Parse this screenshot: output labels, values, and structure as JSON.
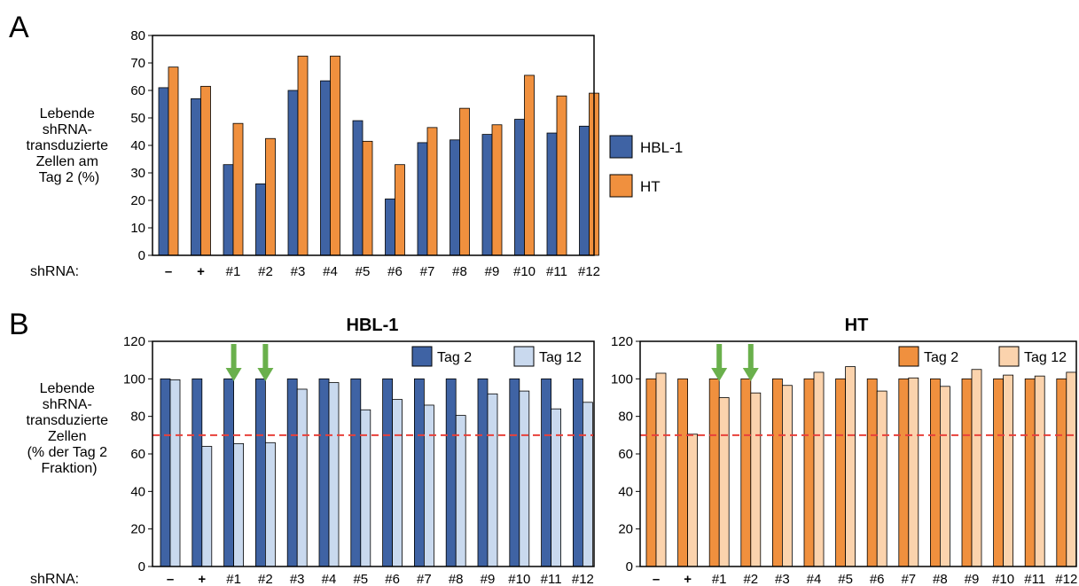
{
  "panel_a": {
    "letter": "A",
    "ylabel_lines": [
      "Lebende",
      "shRNA-",
      "transduzierte",
      "Zellen am",
      "Tag 2 (%)"
    ],
    "xprefix": "shRNA:",
    "legend": [
      "HBL-1",
      "HT"
    ],
    "colors": [
      "#3f63a4",
      "#f0903e"
    ]
  },
  "panel_b": {
    "letter": "B",
    "ylabel_lines": [
      "Lebende",
      "shRNA-",
      "transduzierte",
      "Zellen",
      "(% der Tag 2",
      "Fraktion)"
    ],
    "xprefix": "shRNA:"
  },
  "chart_data": [
    {
      "type": "bar",
      "categories": [
        "–",
        "+",
        "#1",
        "#2",
        "#3",
        "#4",
        "#5",
        "#6",
        "#7",
        "#8",
        "#9",
        "#10",
        "#11",
        "#12"
      ],
      "series": [
        {
          "name": "HBL-1",
          "values": [
            61,
            57,
            33,
            26,
            60,
            63.5,
            49,
            20.5,
            41,
            42,
            44,
            49.5,
            44.5,
            47
          ],
          "color": "#3f63a4"
        },
        {
          "name": "HT",
          "values": [
            68.5,
            61.5,
            48,
            42.5,
            72.5,
            72.5,
            41.5,
            33,
            46.5,
            53.5,
            47.5,
            65.5,
            58,
            59
          ],
          "color": "#f0903e"
        }
      ],
      "ylim": [
        0,
        80
      ],
      "yticks": [
        0,
        10,
        20,
        30,
        40,
        50,
        60,
        70,
        80
      ]
    },
    {
      "type": "bar",
      "title": "HBL-1",
      "categories": [
        "–",
        "+",
        "#1",
        "#2",
        "#3",
        "#4",
        "#5",
        "#6",
        "#7",
        "#8",
        "#9",
        "#10",
        "#11",
        "#12"
      ],
      "series": [
        {
          "name": "Tag 2",
          "values": [
            100,
            100,
            100,
            100,
            100,
            100,
            100,
            100,
            100,
            100,
            100,
            100,
            100,
            100
          ],
          "color": "#3f63a4"
        },
        {
          "name": "Tag 12",
          "values": [
            99.5,
            64,
            65.5,
            66,
            94.5,
            98,
            83.5,
            89,
            86,
            80.5,
            92,
            93.5,
            84,
            87.5
          ],
          "color": "#c9d9ee"
        }
      ],
      "ylim": [
        0,
        120
      ],
      "yticks": [
        0,
        20,
        40,
        60,
        80,
        100,
        120
      ],
      "threshold": 70,
      "arrow_categories": [
        "#1",
        "#2"
      ],
      "arrow_color": "#6ab04c",
      "threshold_color": "#e8403a"
    },
    {
      "type": "bar",
      "title": "HT",
      "categories": [
        "–",
        "+",
        "#1",
        "#2",
        "#3",
        "#4",
        "#5",
        "#6",
        "#7",
        "#8",
        "#9",
        "#10",
        "#11",
        "#12"
      ],
      "series": [
        {
          "name": "Tag 2",
          "values": [
            100,
            100,
            100,
            100,
            100,
            100,
            100,
            100,
            100,
            100,
            100,
            100,
            100,
            100
          ],
          "color": "#f0903e"
        },
        {
          "name": "Tag 12",
          "values": [
            103,
            70.5,
            90,
            92.5,
            96.5,
            103.5,
            106.5,
            93.5,
            100.5,
            96,
            105,
            102,
            101.5,
            103.5
          ],
          "color": "#fbd3ad"
        }
      ],
      "ylim": [
        0,
        120
      ],
      "yticks": [
        0,
        20,
        40,
        60,
        80,
        100,
        120
      ],
      "threshold": 70,
      "arrow_categories": [
        "#1",
        "#2"
      ],
      "arrow_color": "#6ab04c",
      "threshold_color": "#e8403a"
    }
  ]
}
